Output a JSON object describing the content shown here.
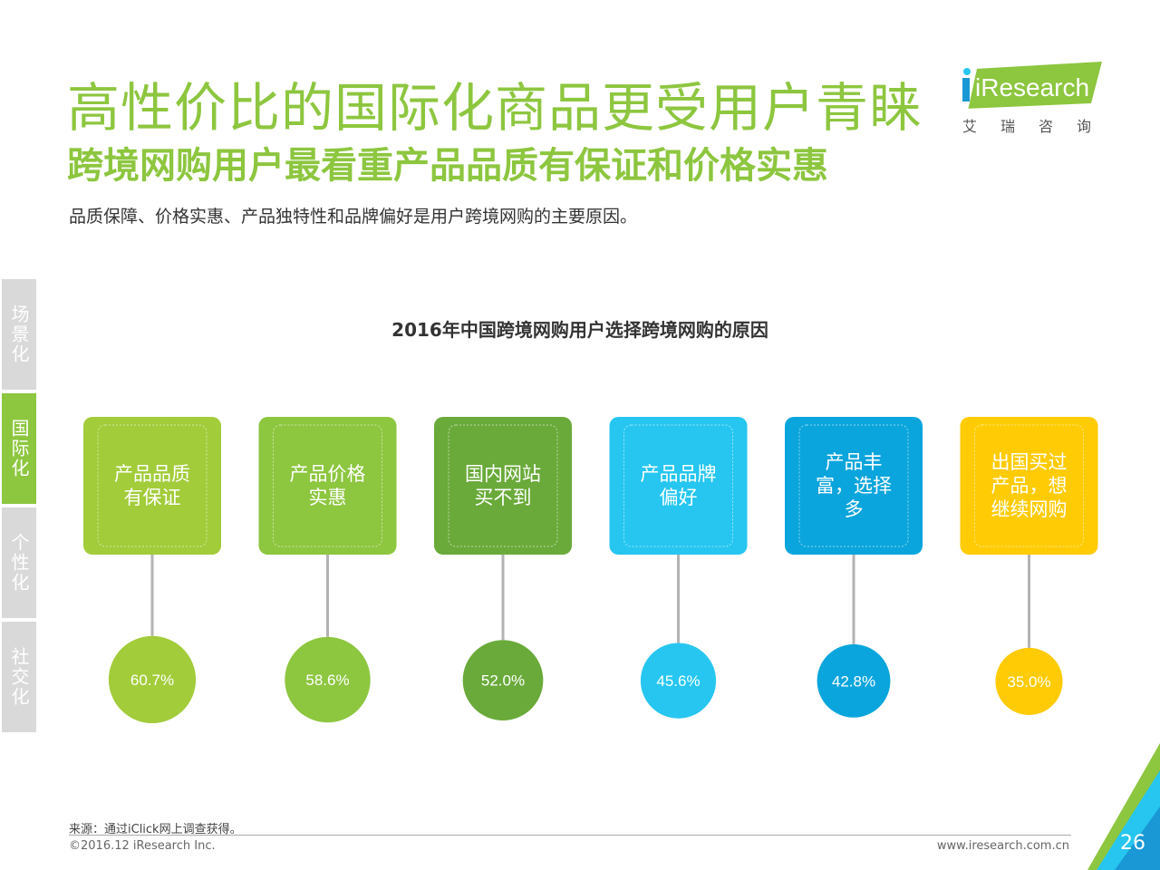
{
  "header": {
    "title": "高性价比的国际化商品更受用户青睐",
    "subtitle": "跨境网购用户最看重产品品质有保证和价格实惠",
    "summary": "品质保障、价格实惠、产品独特性和品牌偏好是用户跨境网购的主要原因。"
  },
  "logo": {
    "name": "iResearch",
    "cn": "艾瑞咨询"
  },
  "side_tabs": [
    {
      "label": "场景化",
      "active": false
    },
    {
      "label": "国际化",
      "active": true
    },
    {
      "label": "个性化",
      "active": false
    },
    {
      "label": "社交化",
      "active": false
    }
  ],
  "chart_data": {
    "type": "bar",
    "title": "2016年中国跨境网购用户选择跨境网购的原因",
    "categories": [
      "产品品质\n有保证",
      "产品价格\n实惠",
      "国内网站\n买不到",
      "产品品牌\n偏好",
      "产品丰\n富，选择\n多",
      "出国买过\n产品，想\n继续网购"
    ],
    "values": [
      60.7,
      58.6,
      52.0,
      45.6,
      42.8,
      35.0
    ],
    "value_labels": [
      "60.7%",
      "58.6%",
      "52.0%",
      "45.6%",
      "42.8%",
      "35.0%"
    ],
    "unit": "%",
    "colors": [
      "#a2cc3a",
      "#8dc63f",
      "#6aaa3a",
      "#26c6f0",
      "#0aa5dc",
      "#ffcb05"
    ]
  },
  "footer": {
    "source": "来源：通过iClick网上调查获得。",
    "copyright": "©2016.12 iResearch Inc.",
    "website": "www.iresearch.com.cn",
    "page": "26"
  }
}
